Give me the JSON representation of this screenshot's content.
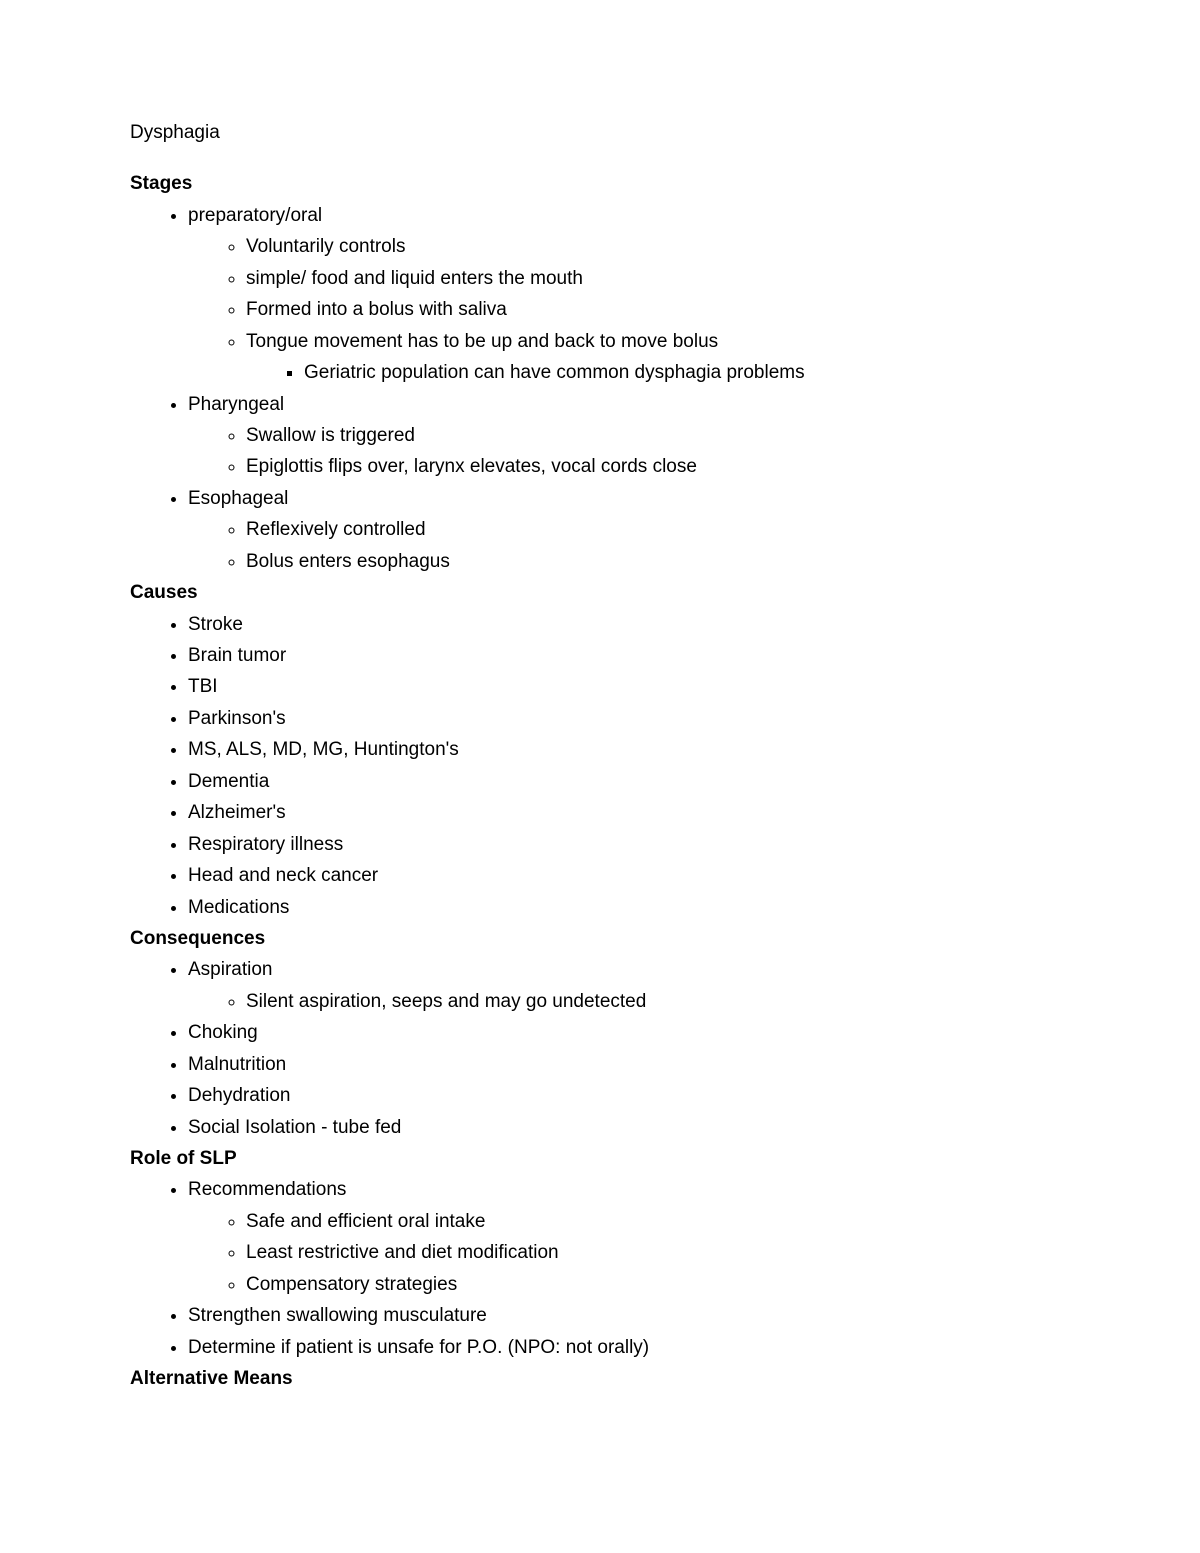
{
  "background_color": "#ffffff",
  "text_color": "#000000",
  "font_family": "Arial",
  "body_fontsize_pt": 14,
  "heading_fontweight": 700,
  "list_marker_levels": [
    "disc",
    "circle",
    "square"
  ],
  "title": "Dysphagia",
  "sections": {
    "stages": {
      "heading": "Stages",
      "items": {
        "prep": {
          "label": "preparatory/oral",
          "sub": {
            "a": "Voluntarily controls",
            "b": "simple/ food and liquid enters the mouth",
            "c": "Formed into a bolus with saliva",
            "d": "Tongue movement has to be up and back to move bolus",
            "d_sub": "Geriatric population can have common dysphagia problems"
          }
        },
        "phar": {
          "label": "Pharyngeal",
          "sub": {
            "a": "Swallow is triggered",
            "b": "Epiglottis flips over, larynx elevates, vocal cords close"
          }
        },
        "eso": {
          "label": "Esophageal",
          "sub": {
            "a": "Reflexively controlled",
            "b": "Bolus enters esophagus"
          }
        }
      }
    },
    "causes": {
      "heading": "Causes",
      "items": {
        "a": "Stroke",
        "b": "Brain tumor",
        "c": "TBI",
        "d": "Parkinson's",
        "e": "MS, ALS, MD, MG, Huntington's",
        "f": "Dementia",
        "g": "Alzheimer's",
        "h": "Respiratory illness",
        "i": "Head and neck cancer",
        "j": "Medications"
      }
    },
    "consequences": {
      "heading": "Consequences",
      "items": {
        "asp": {
          "label": "Aspiration",
          "sub": "Silent aspiration, seeps and may go undetected"
        },
        "b": "Choking",
        "c": "Malnutrition",
        "d": "Dehydration",
        "e": "Social Isolation - tube fed"
      }
    },
    "slp": {
      "heading": "Role of SLP",
      "items": {
        "rec": {
          "label": "Recommendations",
          "sub": {
            "a": "Safe and efficient oral intake",
            "b": "Least restrictive and diet modification",
            "c": "Compensatory strategies"
          }
        },
        "b": "Strengthen swallowing musculature",
        "c": "Determine if patient is unsafe for P.O. (NPO: not orally)"
      }
    },
    "alt": {
      "heading": "Alternative Means"
    }
  }
}
